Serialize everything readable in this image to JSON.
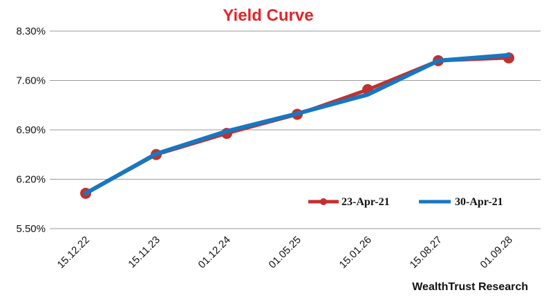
{
  "chart_data": {
    "type": "line",
    "title": "Yield Curve",
    "categories": [
      "15.12.22",
      "15.11.23",
      "01.12.24",
      "01.05.25",
      "15.01.26",
      "15.08.27",
      "01.09.28"
    ],
    "yticks": [
      "5.50%",
      "6.20%",
      "6.90%",
      "7.60%",
      "8.30%"
    ],
    "ylim": [
      5.5,
      8.3
    ],
    "grid": true,
    "legend_position": "bottom-right",
    "series": [
      {
        "name": "23-Apr-21",
        "color": "#c0312f",
        "values": [
          6.0,
          6.55,
          6.85,
          7.12,
          7.47,
          7.88,
          7.92
        ]
      },
      {
        "name": "30-Apr-21",
        "color": "#1877c0",
        "values": [
          6.0,
          6.56,
          6.88,
          7.13,
          7.4,
          7.88,
          7.96
        ]
      }
    ],
    "source": "WealthTrust Research"
  }
}
